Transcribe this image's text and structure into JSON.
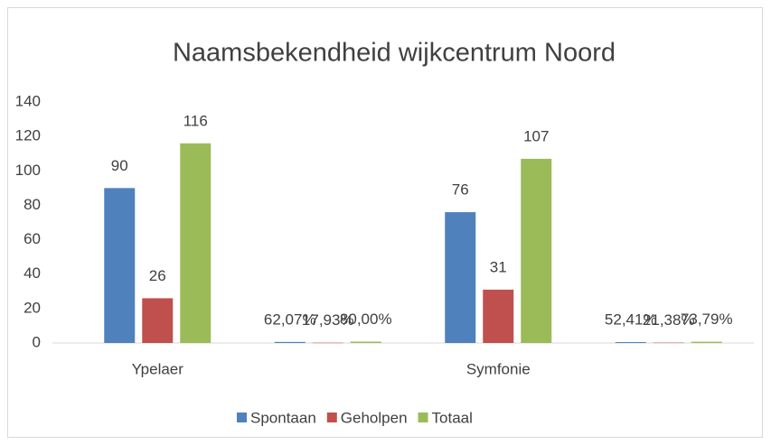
{
  "chart_data": {
    "type": "bar",
    "title": "Naamsbekendheid wijkcentrum Noord",
    "categories": [
      "Ypelaer",
      null,
      "Symfonie",
      null
    ],
    "series": [
      {
        "name": "Spontaan",
        "color": "#4f81bd",
        "values": [
          90,
          0.6207,
          76,
          0.5241
        ],
        "value_labels": [
          "90",
          "62,07%",
          "76",
          "52,41%"
        ]
      },
      {
        "name": "Geholpen",
        "color": "#c0504d",
        "values": [
          26,
          0.1793,
          31,
          0.2138
        ],
        "value_labels": [
          "26",
          "17,93%",
          "31",
          "21,38%"
        ]
      },
      {
        "name": "Totaal",
        "color": "#9bbb59",
        "values": [
          116,
          0.8,
          107,
          0.7379
        ],
        "value_labels": [
          "116",
          "80,00%",
          "107",
          "73,79%"
        ]
      }
    ],
    "ylim": [
      0,
      140
    ],
    "yticks": [
      0,
      20,
      40,
      60,
      80,
      100,
      120,
      140
    ],
    "grid": false,
    "legend": "bottom"
  }
}
